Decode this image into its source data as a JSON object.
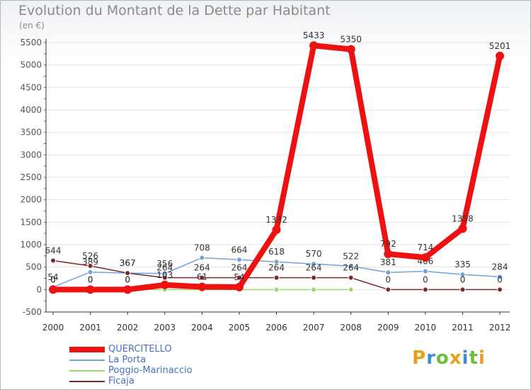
{
  "title": "Evolution du Montant de la Dette par Habitant",
  "unit_label": "(en €)",
  "logo": {
    "text": "Proxiti",
    "colors": [
      "#e3a21a",
      "#3b8fd8",
      "#6bbf3b",
      "#e3a21a",
      "#3b8fd8",
      "#6bbf3b",
      "#e3a21a"
    ]
  },
  "chart_data": {
    "type": "line",
    "title": "Evolution du Montant de la Dette par Habitant",
    "ylabel": "(en €)",
    "xlabel": "",
    "ylim": [
      -500,
      5500
    ],
    "yticks": [
      -500,
      0,
      500,
      1000,
      1500,
      2000,
      2500,
      3000,
      3500,
      4000,
      4500,
      5000,
      5500
    ],
    "categories": [
      "2000",
      "2001",
      "2002",
      "2003",
      "2004",
      "2005",
      "2006",
      "2007",
      "2008",
      "2009",
      "2010",
      "2011",
      "2012"
    ],
    "series": [
      {
        "name": "QUERCITELLO",
        "color": "#ee1111",
        "emphasis": true,
        "values": [
          0,
          0,
          0,
          103,
          61,
          54,
          1332,
          5433,
          5350,
          792,
          714,
          1358,
          5201
        ],
        "labels": [
          "0",
          "0",
          "0",
          "103",
          "61",
          "54",
          "1332",
          "5433",
          "5350",
          "792",
          "714",
          "1358",
          "5201"
        ]
      },
      {
        "name": "La Porta",
        "color": "#6fa3d9",
        "values": [
          54,
          389,
          367,
          356,
          708,
          664,
          618,
          570,
          522,
          381,
          406,
          335,
          284
        ],
        "labels": [
          "54",
          "389",
          "367",
          "356",
          "708",
          "664",
          "618",
          "570",
          "522",
          "381",
          "406",
          "335",
          "284"
        ]
      },
      {
        "name": "Poggio-Marinaccio",
        "color": "#9ad96b",
        "values": [
          0,
          0,
          0,
          0,
          0,
          0,
          0,
          0,
          0,
          null,
          null,
          null,
          null
        ],
        "labels": [
          "0",
          "0",
          "0",
          "",
          "",
          "",
          "",
          "",
          "",
          "",
          "",
          "",
          ""
        ]
      },
      {
        "name": "Ficaja",
        "color": "#7a2a2a",
        "values": [
          644,
          526,
          367,
          264,
          264,
          264,
          264,
          264,
          264,
          0,
          0,
          0,
          0
        ],
        "labels": [
          "644",
          "526",
          "367",
          "264",
          "264",
          "264",
          "264",
          "264",
          "264",
          "0",
          "0",
          "0",
          "0"
        ]
      }
    ]
  }
}
